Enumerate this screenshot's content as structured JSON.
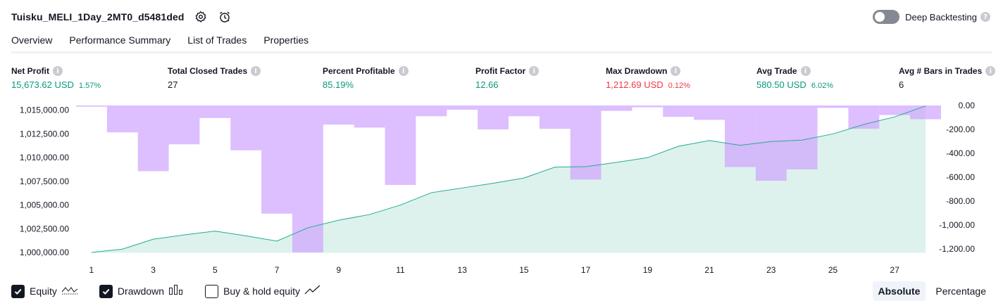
{
  "header": {
    "strategy_name": "Tuisku_MELI_1Day_2MT0_d5481ded",
    "icons": [
      "settings-icon",
      "alarm-clock-icon"
    ],
    "deep_backtesting_label": "Deep Backtesting",
    "deep_backtesting_enabled": false
  },
  "tabs": [
    {
      "label": "Overview",
      "active": true
    },
    {
      "label": "Performance Summary",
      "active": false
    },
    {
      "label": "List of Trades",
      "active": false
    },
    {
      "label": "Properties",
      "active": false
    }
  ],
  "metrics": [
    {
      "title": "Net Profit",
      "value": "15,673.62 USD",
      "pct": "1.57%",
      "color": "green"
    },
    {
      "title": "Total Closed Trades",
      "value": "27",
      "pct": "",
      "color": "dark"
    },
    {
      "title": "Percent Profitable",
      "value": "85.19%",
      "pct": "",
      "color": "green"
    },
    {
      "title": "Profit Factor",
      "value": "12.66",
      "pct": "",
      "color": "green"
    },
    {
      "title": "Max Drawdown",
      "value": "1,212.69 USD",
      "pct": "0.12%",
      "color": "red"
    },
    {
      "title": "Avg Trade",
      "value": "580.50 USD",
      "pct": "6.02%",
      "color": "green"
    },
    {
      "title": "Avg # Bars in Trades",
      "value": "6",
      "pct": "",
      "color": "dark"
    }
  ],
  "chart_data": {
    "type": "area",
    "x": [
      1,
      2,
      3,
      4,
      5,
      6,
      7,
      8,
      9,
      10,
      11,
      12,
      13,
      14,
      15,
      16,
      17,
      18,
      19,
      20,
      21,
      22,
      23,
      24,
      25,
      26,
      27,
      28
    ],
    "x_tick_labels": [
      "1",
      "3",
      "5",
      "7",
      "9",
      "11",
      "13",
      "15",
      "17",
      "19",
      "21",
      "23",
      "25",
      "27"
    ],
    "y_left_ticks": [
      "1,015,000.00",
      "1,012,500.00",
      "1,010,000.00",
      "1,007,500.00",
      "1,005,000.00",
      "1,002,500.00",
      "1,000,000.00"
    ],
    "y_right_ticks": [
      "0.00",
      "-200.00",
      "-400.00",
      "-600.00",
      "-800.00",
      "-1,000.00",
      "-1,200.00"
    ],
    "ylim_left": [
      1000000,
      1015500
    ],
    "ylim_right": [
      -1230,
      0
    ],
    "series": [
      {
        "axis": "left",
        "kind": "area",
        "values": [
          1000000,
          1000350,
          1001400,
          1001850,
          1002250,
          1001750,
          1001200,
          1002600,
          1003400,
          1004000,
          1005000,
          1006300,
          1006800,
          1007300,
          1007850,
          1009000,
          1009050,
          1009500,
          1010000,
          1011200,
          1011800,
          1011300,
          1011700,
          1011850,
          1012500,
          1013500,
          1014300,
          1015450
        ]
      },
      {
        "axis": "right",
        "kind": "bar",
        "values": [
          -10,
          -225,
          -550,
          -325,
          -105,
          -375,
          -905,
          -1230,
          -160,
          -185,
          -665,
          -90,
          -35,
          -200,
          -90,
          -195,
          -620,
          -45,
          -15,
          -95,
          -120,
          -515,
          -630,
          -535,
          -20,
          -195,
          -80,
          -115
        ]
      }
    ],
    "colors": {
      "equity_line": "#22ab94",
      "equity_fill": "#d9f1ea",
      "drawdown_bar": "#cfa2ff"
    }
  },
  "legend": {
    "items": [
      {
        "label": "Equity",
        "checked": true,
        "icon": "equity-line-icon"
      },
      {
        "label": "Drawdown",
        "checked": true,
        "icon": "drawdown-bars-icon"
      },
      {
        "label": "Buy & hold equity",
        "checked": false,
        "icon": "buy-hold-line-icon"
      }
    ]
  },
  "view_mode": {
    "absolute_label": "Absolute",
    "percentage_label": "Percentage",
    "active": "absolute"
  }
}
